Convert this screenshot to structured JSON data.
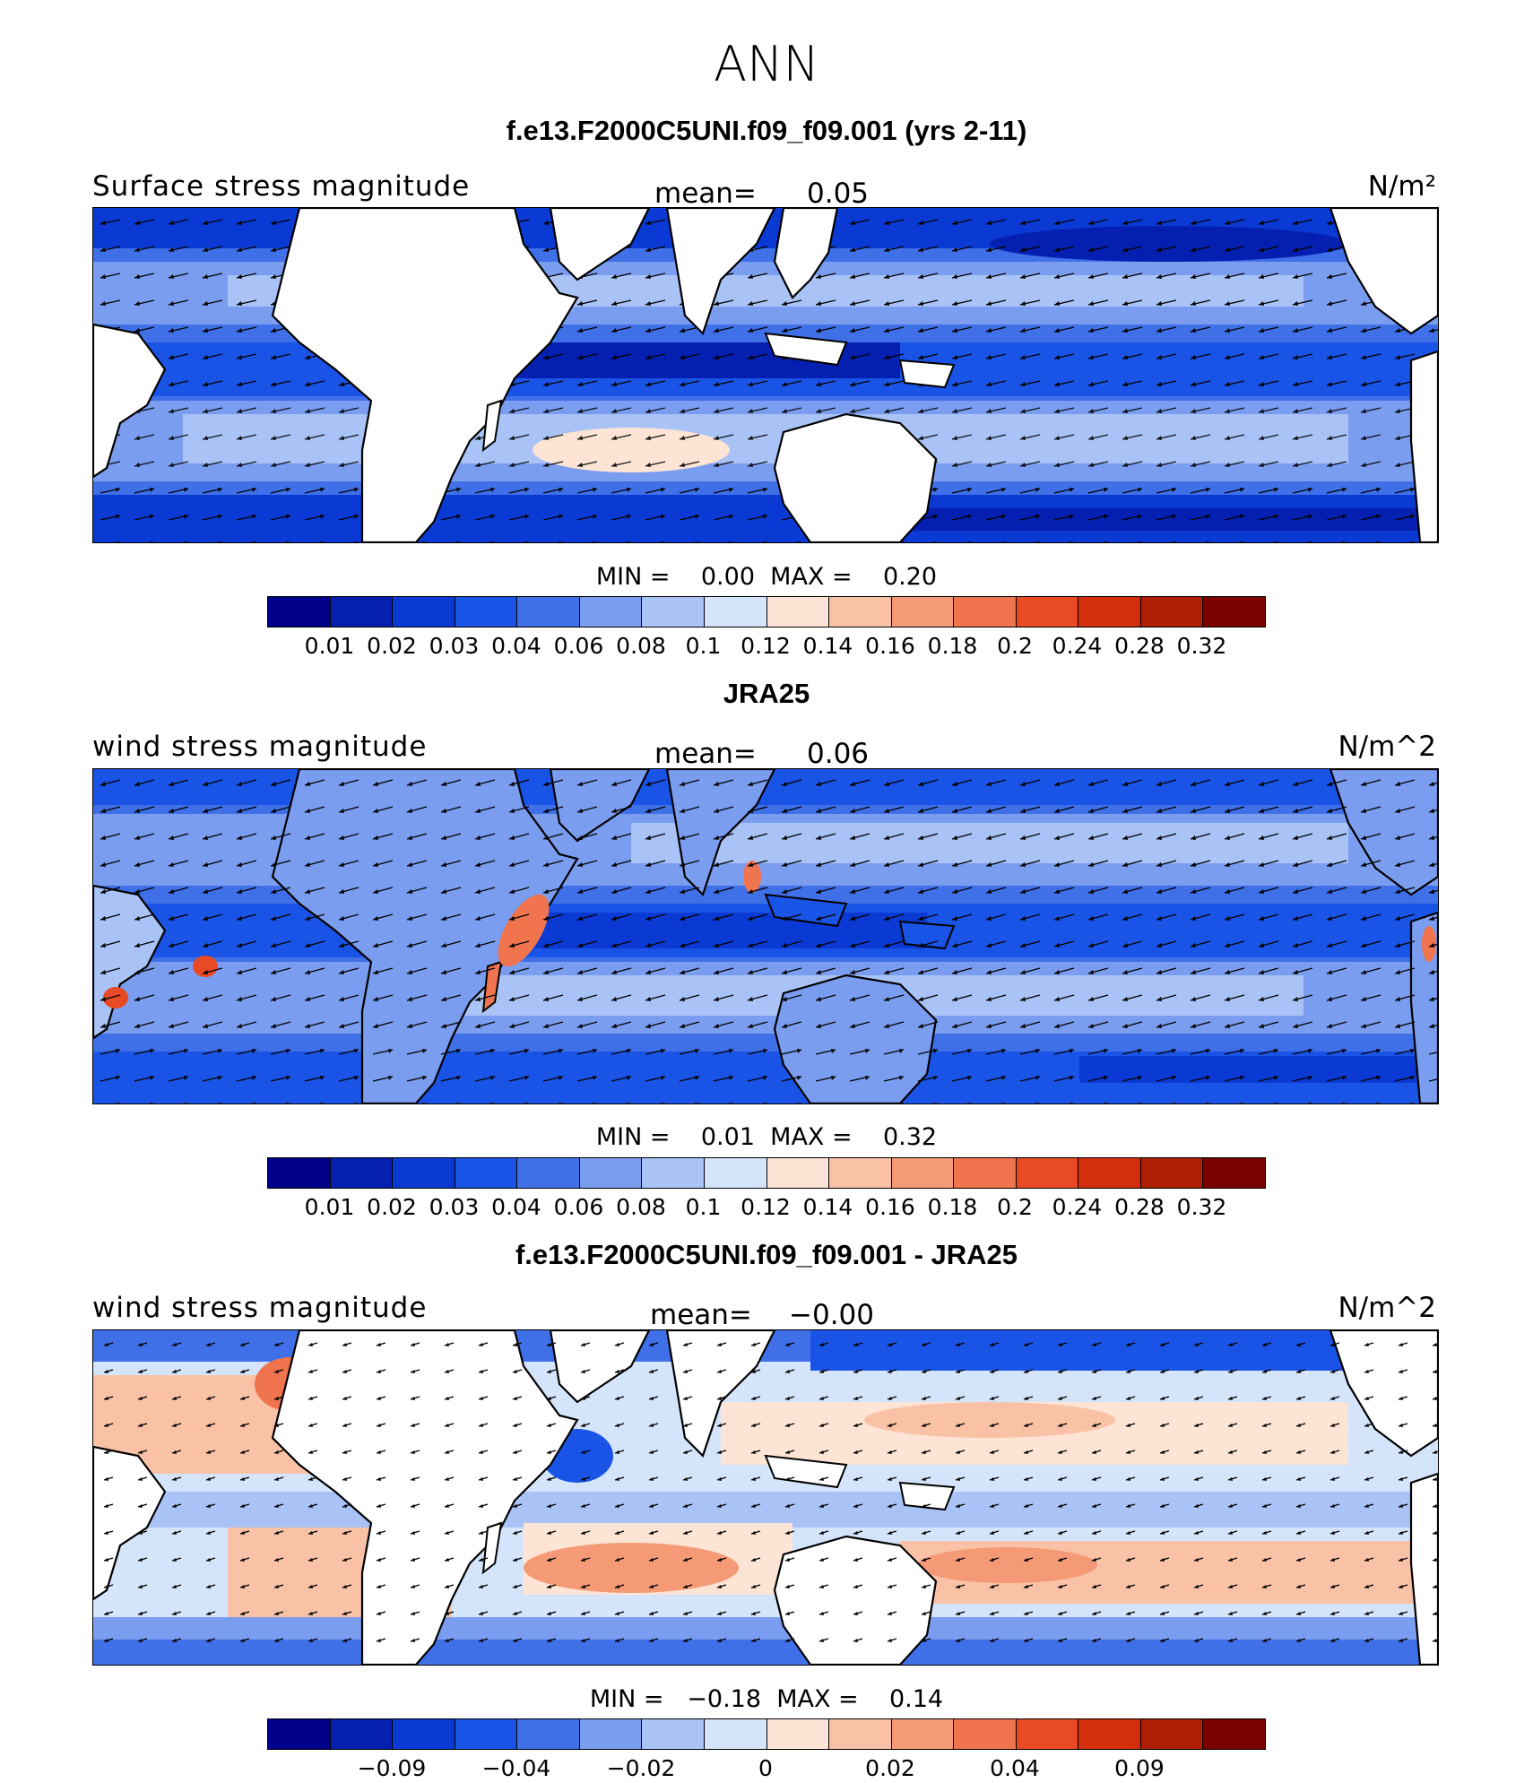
{
  "figure": {
    "title": "ANN"
  },
  "panels": [
    {
      "title": "f.e13.F2000C5UNI.f09_f09.001 (yrs 2-11)",
      "variable": "Surface stress magnitude",
      "mean_label": "mean=",
      "mean_value": "0.05",
      "units": "N/m²",
      "min_max": "MIN =    0.00  MAX =    0.20",
      "colorbar": {
        "colors": [
          "#00008a",
          "#0520b0",
          "#0a3ad3",
          "#1a54e6",
          "#3f70e8",
          "#7b9df0",
          "#a9c3f6",
          "#d4e5fb",
          "#fde4d4",
          "#f9c2a6",
          "#f59a76",
          "#f0744e",
          "#e84a25",
          "#d42f0d",
          "#ae1f06",
          "#7b0000"
        ],
        "ticks": [
          "0.01",
          "0.02",
          "0.03",
          "0.04",
          "0.06",
          "0.08",
          "0.1",
          "0.12",
          "0.14",
          "0.16",
          "0.18",
          "0.2",
          "0.24",
          "0.28",
          "0.32"
        ]
      }
    },
    {
      "title": "JRA25",
      "variable": "wind stress magnitude",
      "mean_label": "mean=",
      "mean_value": "0.06",
      "units": "N/m^2",
      "min_max": "MIN =    0.01  MAX =    0.32",
      "colorbar": {
        "colors": [
          "#00008a",
          "#0520b0",
          "#0a3ad3",
          "#1a54e6",
          "#3f70e8",
          "#7b9df0",
          "#a9c3f6",
          "#d4e5fb",
          "#fde4d4",
          "#f9c2a6",
          "#f59a76",
          "#f0744e",
          "#e84a25",
          "#d42f0d",
          "#ae1f06",
          "#7b0000"
        ],
        "ticks": [
          "0.01",
          "0.02",
          "0.03",
          "0.04",
          "0.06",
          "0.08",
          "0.1",
          "0.12",
          "0.14",
          "0.16",
          "0.18",
          "0.2",
          "0.24",
          "0.28",
          "0.32"
        ]
      }
    },
    {
      "title": "f.e13.F2000C5UNI.f09_f09.001 - JRA25",
      "variable": "wind stress magnitude",
      "mean_label": "mean=",
      "mean_value": "−0.00",
      "units": "N/m^2",
      "min_max": "MIN =   −0.18  MAX =    0.14",
      "colorbar": {
        "colors": [
          "#00008a",
          "#0520b0",
          "#0a3ad3",
          "#1a54e6",
          "#3f70e8",
          "#7b9df0",
          "#a9c3f6",
          "#d4e5fb",
          "#fde4d4",
          "#f9c2a6",
          "#f59a76",
          "#f0744e",
          "#e84a25",
          "#d42f0d",
          "#ae1f06",
          "#7b0000"
        ],
        "ticks": [
          "−0.09",
          "−0.04",
          "−0.02",
          "0",
          "0.02",
          "0.04",
          "0.09"
        ]
      }
    }
  ]
}
